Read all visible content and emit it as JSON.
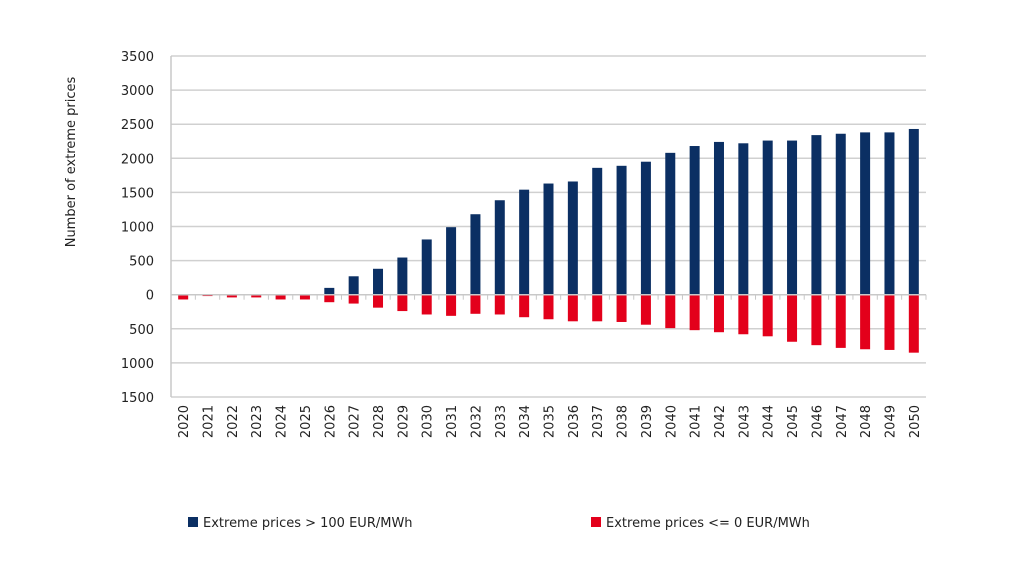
{
  "chart_data": {
    "type": "bar",
    "title": "",
    "xlabel": "",
    "ylabel": "Number of extreme prices",
    "ylim": [
      -1500,
      3500
    ],
    "yticks": [
      3500,
      3000,
      2500,
      2000,
      1500,
      1000,
      500,
      0,
      -500,
      -1000,
      -1500
    ],
    "ytick_labels": [
      "3500",
      "3000",
      "2500",
      "2000",
      "1500",
      "1000",
      "500",
      "0",
      "500",
      "1000",
      "1500"
    ],
    "grid": true,
    "legend_position": "bottom",
    "categories": [
      "2020",
      "2021",
      "2022",
      "2023",
      "2024",
      "2025",
      "2026",
      "2027",
      "2028",
      "2029",
      "2030",
      "2031",
      "2032",
      "2033",
      "2034",
      "2035",
      "2036",
      "2037",
      "2038",
      "2039",
      "2040",
      "2041",
      "2042",
      "2043",
      "2044",
      "2045",
      "2046",
      "2047",
      "2048",
      "2049",
      "2050"
    ],
    "series": [
      {
        "name": "Extreme prices > 100 EUR/MWh",
        "color": "#0b2f63",
        "values": [
          0,
          0,
          0,
          0,
          0,
          0,
          100,
          270,
          380,
          545,
          810,
          990,
          1180,
          1385,
          1540,
          1630,
          1660,
          1860,
          1890,
          1950,
          2080,
          2180,
          2240,
          2220,
          2260,
          2260,
          2340,
          2360,
          2380,
          2380,
          2430
        ]
      },
      {
        "name": "Extreme prices <= 0 EUR/MWh",
        "color": "#e3001b",
        "values": [
          -70,
          -20,
          -40,
          -40,
          -70,
          -70,
          -110,
          -130,
          -190,
          -240,
          -290,
          -310,
          -280,
          -290,
          -330,
          -360,
          -390,
          -390,
          -400,
          -440,
          -490,
          -520,
          -550,
          -580,
          -610,
          -690,
          -740,
          -780,
          -800,
          -810,
          -850
        ]
      }
    ]
  }
}
